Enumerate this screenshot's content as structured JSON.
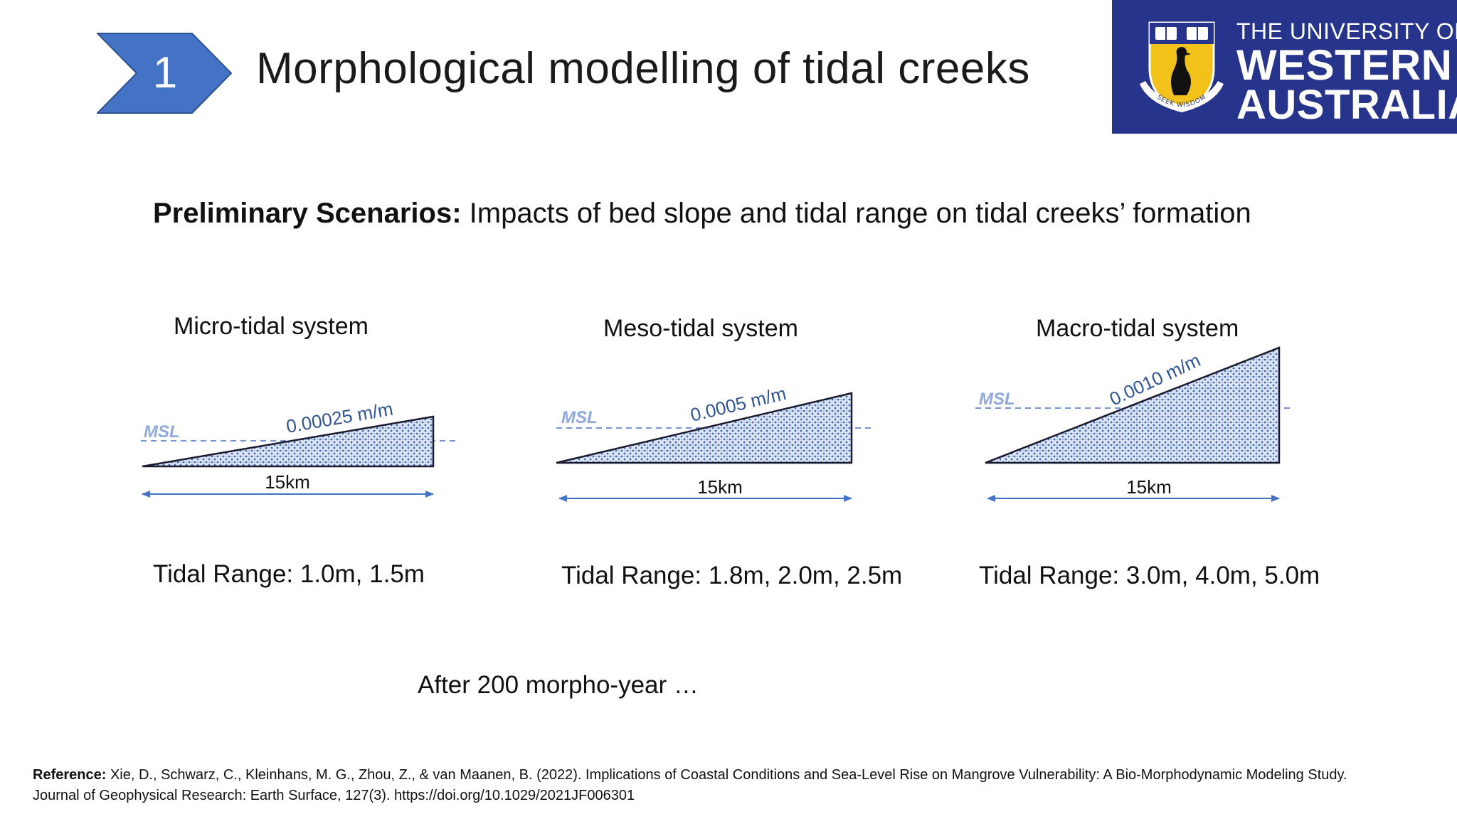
{
  "header": {
    "step_number": "1",
    "title": "Morphological modelling of tidal creeks"
  },
  "logo": {
    "line1": "THE UNIVERSITY OF",
    "line2": "WESTERN",
    "line3": "AUSTRALIA",
    "motto": "SEEK WISDOM",
    "background_color": "#27348b",
    "shield_color": "#f2c21b"
  },
  "subtitle": {
    "bold": "Preliminary Scenarios:",
    "rest": " Impacts of bed slope and tidal range on tidal creeks’ formation"
  },
  "systems": [
    {
      "title": "Micro-tidal system",
      "slope_label": "0.00025 m/m",
      "msl_label": "MSL",
      "length_label": "15km",
      "tidal_range": "Tidal Range: 1.0m, 1.5m"
    },
    {
      "title": "Meso-tidal system",
      "slope_label": "0.0005 m/m",
      "msl_label": "MSL",
      "length_label": "15km",
      "tidal_range": "Tidal Range: 1.8m, 2.0m, 2.5m"
    },
    {
      "title": "Macro-tidal system",
      "slope_label": "0.0010 m/m",
      "msl_label": "MSL",
      "length_label": "15km",
      "tidal_range": "Tidal Range: 3.0m, 4.0m, 5.0m"
    }
  ],
  "after_text": "After 200 morpho-year …",
  "reference": {
    "label": "Reference:",
    "text": " Xie, D., Schwarz, C., Kleinhans, M. G., Zhou, Z., & van Maanen, B. (2022). Implications of Coastal Conditions and Sea-Level Rise on Mangrove Vulnerability: A Bio-Morphodynamic Modeling Study. Journal of Geophysical Research: Earth Surface, 127(3). https://doi.org/10.1029/2021JF006301"
  },
  "colors": {
    "chevron": "#4472c4",
    "slope_text": "#2f5597",
    "msl_text": "#8fa9dc",
    "arrow": "#4472c4"
  }
}
